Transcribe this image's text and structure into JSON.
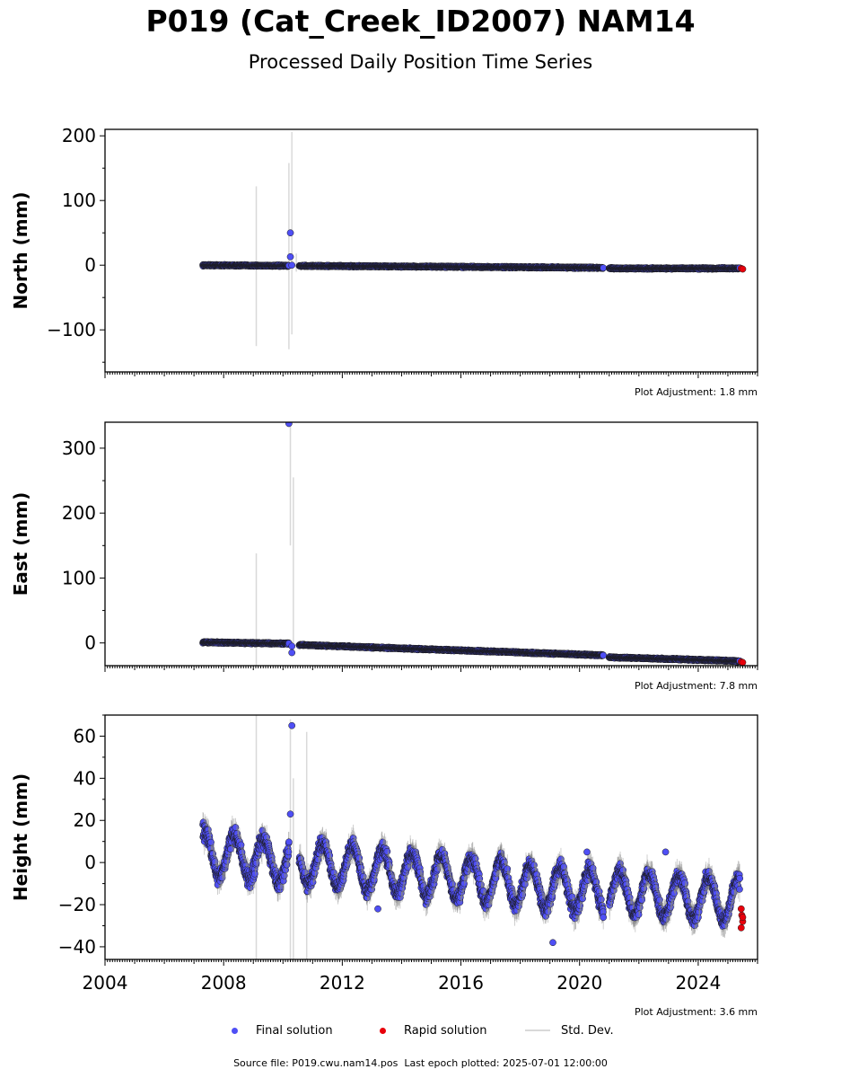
{
  "title": "P019 (Cat_Creek_ID2007) NAM14",
  "subtitle": "Processed Daily Position Time Series",
  "legend": {
    "final": "Final solution",
    "rapid": "Rapid solution",
    "stddev": "Std. Dev."
  },
  "colors": {
    "final": "#4f4ff5",
    "rapid": "#e8000b",
    "stddev": "#d9d9d9"
  },
  "footer": {
    "source": "Source file: P019.cwu.nam14.pos",
    "last_epoch": "Last epoch plotted: 2025-07-01 12:00:00"
  },
  "chart_data": [
    {
      "type": "scatter",
      "ylabel": "North (mm)",
      "xlim": [
        2004,
        2026
      ],
      "ylim": [
        -165,
        210
      ],
      "yticks": [
        -100,
        0,
        100,
        200
      ],
      "ytick_labels": [
        "−100",
        "0",
        "100",
        "200"
      ],
      "xticks": [],
      "adjustment": "Plot Adjustment: 1.8 mm",
      "grid": false,
      "segments": [
        {
          "x0": 2007.3,
          "x1": 2010.2,
          "y0": 0,
          "y1": -1,
          "noise": 1.5
        },
        {
          "x0": 2010.55,
          "x1": 2020.8,
          "y0": -1,
          "y1": -4,
          "noise": 1.5
        },
        {
          "x0": 2021.0,
          "x1": 2025.4,
          "y0": -5,
          "y1": -5,
          "noise": 1.5
        }
      ],
      "outliers": [
        [
          2010.25,
          50
        ],
        [
          2010.25,
          13
        ],
        [
          2010.3,
          0
        ]
      ],
      "error_bars": [
        [
          2009.1,
          -125,
          122
        ],
        [
          2010.2,
          -130,
          158
        ],
        [
          2010.3,
          -107,
          206
        ],
        [
          2010.45,
          -10,
          18
        ]
      ],
      "rapid": [
        [
          2025.45,
          -5
        ],
        [
          2025.5,
          -6
        ]
      ]
    },
    {
      "type": "scatter",
      "ylabel": "East (mm)",
      "xlim": [
        2004,
        2026
      ],
      "ylim": [
        -35,
        340
      ],
      "yticks": [
        0,
        100,
        200,
        300
      ],
      "ytick_labels": [
        "0",
        "100",
        "200",
        "300"
      ],
      "xticks": [],
      "adjustment": "Plot Adjustment: 7.8 mm",
      "grid": false,
      "segments": [
        {
          "x0": 2007.3,
          "x1": 2010.2,
          "y0": 1,
          "y1": -1,
          "noise": 1.5
        },
        {
          "x0": 2010.55,
          "x1": 2020.8,
          "y0": -3,
          "y1": -19,
          "noise": 1.5
        },
        {
          "x0": 2021.0,
          "x1": 2025.4,
          "y0": -22,
          "y1": -28,
          "noise": 1.5
        }
      ],
      "outliers": [
        [
          2010.2,
          338
        ],
        [
          2010.3,
          -15
        ],
        [
          2010.3,
          -5
        ]
      ],
      "error_bars": [
        [
          2009.1,
          -35,
          138
        ],
        [
          2010.25,
          150,
          338
        ],
        [
          2010.35,
          -10,
          255
        ]
      ],
      "rapid": [
        [
          2025.45,
          -29
        ],
        [
          2025.5,
          -30
        ]
      ]
    },
    {
      "type": "scatter",
      "ylabel": "Height (mm)",
      "xlim": [
        2004,
        2026
      ],
      "ylim": [
        -46,
        70
      ],
      "yticks": [
        -40,
        -20,
        0,
        20,
        40,
        60
      ],
      "ytick_labels": [
        "−40",
        "−20",
        "0",
        "20",
        "40",
        "60"
      ],
      "xticks": [
        2004,
        2008,
        2012,
        2016,
        2020,
        2024
      ],
      "xtick_labels": [
        "2004",
        "2008",
        "2012",
        "2016",
        "2020",
        "2024"
      ],
      "adjustment": "Plot Adjustment: 3.6 mm",
      "grid": false,
      "segments": [
        {
          "x0": 2007.3,
          "x1": 2010.2,
          "y0": 5,
          "y1": 0,
          "noise": 6,
          "seasonal": 10
        },
        {
          "x0": 2010.55,
          "x1": 2020.8,
          "y0": 0,
          "y1": -14,
          "noise": 5,
          "seasonal": 10
        },
        {
          "x0": 2021.0,
          "x1": 2025.4,
          "y0": -14,
          "y1": -18,
          "noise": 5,
          "seasonal": 10
        }
      ],
      "outliers": [
        [
          2010.3,
          65
        ],
        [
          2010.25,
          23
        ],
        [
          2019.1,
          -38
        ],
        [
          2020.25,
          5
        ],
        [
          2022.9,
          5
        ],
        [
          2013.2,
          -22
        ]
      ],
      "error_bars": [
        [
          2009.1,
          -46,
          70
        ],
        [
          2010.25,
          -46,
          68
        ],
        [
          2010.35,
          -46,
          40
        ],
        [
          2010.8,
          -46,
          62
        ]
      ],
      "rapid": [
        [
          2025.45,
          -22
        ],
        [
          2025.47,
          -25
        ],
        [
          2025.5,
          -28
        ],
        [
          2025.45,
          -31
        ],
        [
          2025.5,
          -26
        ]
      ]
    }
  ]
}
